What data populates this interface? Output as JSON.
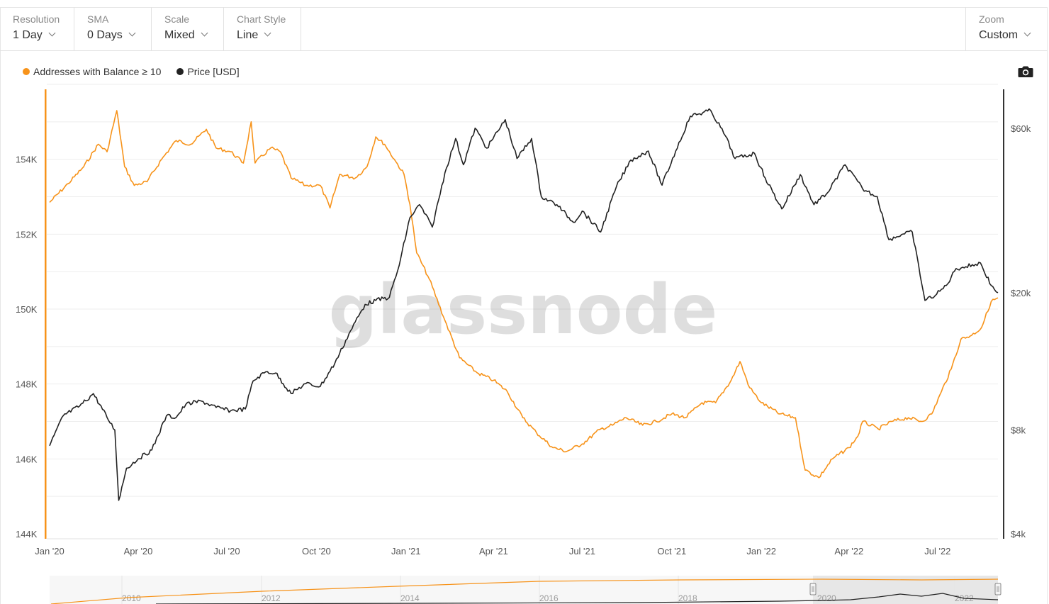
{
  "toolbar": {
    "resolution": {
      "label": "Resolution",
      "value": "1 Day"
    },
    "sma": {
      "label": "SMA",
      "value": "0 Days"
    },
    "scale": {
      "label": "Scale",
      "value": "Mixed"
    },
    "chart_style": {
      "label": "Chart Style",
      "value": "Line"
    },
    "zoom": {
      "label": "Zoom",
      "value": "Custom"
    }
  },
  "icons": {
    "camera": "camera-icon"
  },
  "colors": {
    "addresses": "#f7931a",
    "price": "#222222",
    "grid": "#eeeeee"
  },
  "watermark": "glassnode",
  "navigator": {
    "ticks": [
      "2010",
      "2012",
      "2014",
      "2016",
      "2018",
      "2020",
      "2022"
    ]
  },
  "chart_data": {
    "type": "line",
    "title": "",
    "legend": "top-left",
    "grid": true,
    "x_range": [
      "2020-01-01",
      "2022-09-01"
    ],
    "x_ticks": [
      "Jan '20",
      "Apr '20",
      "Jul '20",
      "Oct '20",
      "Jan '21",
      "Apr '21",
      "Jul '21",
      "Oct '21",
      "Jan '22",
      "Apr '22",
      "Jul '22"
    ],
    "y_left": {
      "scale": "linear",
      "range": [
        144000,
        156000
      ],
      "ticks": [
        "144K",
        "146K",
        "148K",
        "150K",
        "152K",
        "154K"
      ]
    },
    "y_right": {
      "scale": "log",
      "range": [
        4000,
        80000
      ],
      "ticks": [
        "$4k",
        "$8k",
        "$20k",
        "$60k"
      ]
    },
    "series": [
      {
        "name": "Addresses with Balance ≥ 10",
        "axis": "left",
        "points": [
          [
            "2020-01-01",
            152850
          ],
          [
            "2020-01-20",
            153350
          ],
          [
            "2020-02-05",
            153800
          ],
          [
            "2020-02-20",
            154400
          ],
          [
            "2020-02-29",
            154200
          ],
          [
            "2020-03-10",
            155300
          ],
          [
            "2020-03-18",
            153800
          ],
          [
            "2020-03-28",
            153300
          ],
          [
            "2020-04-10",
            153400
          ],
          [
            "2020-04-25",
            154000
          ],
          [
            "2020-05-10",
            154500
          ],
          [
            "2020-05-25",
            154400
          ],
          [
            "2020-06-10",
            154800
          ],
          [
            "2020-06-20",
            154300
          ],
          [
            "2020-07-05",
            154200
          ],
          [
            "2020-07-18",
            153900
          ],
          [
            "2020-07-26",
            155000
          ],
          [
            "2020-07-30",
            153900
          ],
          [
            "2020-08-15",
            154300
          ],
          [
            "2020-08-25",
            154200
          ],
          [
            "2020-09-05",
            153500
          ],
          [
            "2020-09-20",
            153300
          ],
          [
            "2020-10-05",
            153300
          ],
          [
            "2020-10-15",
            152700
          ],
          [
            "2020-10-25",
            153600
          ],
          [
            "2020-11-10",
            153500
          ],
          [
            "2020-11-22",
            153800
          ],
          [
            "2020-12-01",
            154600
          ],
          [
            "2020-12-10",
            154400
          ],
          [
            "2020-12-20",
            154000
          ],
          [
            "2020-12-30",
            153600
          ],
          [
            "2021-01-05",
            152800
          ],
          [
            "2021-01-12",
            151500
          ],
          [
            "2021-01-25",
            150800
          ],
          [
            "2021-02-10",
            149700
          ],
          [
            "2021-02-25",
            148700
          ],
          [
            "2021-03-15",
            148300
          ],
          [
            "2021-04-01",
            148100
          ],
          [
            "2021-04-15",
            147800
          ],
          [
            "2021-05-01",
            147100
          ],
          [
            "2021-05-15",
            146700
          ],
          [
            "2021-06-01",
            146300
          ],
          [
            "2021-06-15",
            146200
          ],
          [
            "2021-07-01",
            146400
          ],
          [
            "2021-07-20",
            146800
          ],
          [
            "2021-08-01",
            146900
          ],
          [
            "2021-08-15",
            147100
          ],
          [
            "2021-09-01",
            146900
          ],
          [
            "2021-09-15",
            147000
          ],
          [
            "2021-10-01",
            147200
          ],
          [
            "2021-10-15",
            147100
          ],
          [
            "2021-11-01",
            147500
          ],
          [
            "2021-11-15",
            147500
          ],
          [
            "2021-12-01",
            148100
          ],
          [
            "2021-12-10",
            148600
          ],
          [
            "2021-12-20",
            147900
          ],
          [
            "2022-01-01",
            147500
          ],
          [
            "2022-01-20",
            147200
          ],
          [
            "2022-02-05",
            147100
          ],
          [
            "2022-02-15",
            145700
          ],
          [
            "2022-03-01",
            145500
          ],
          [
            "2022-03-15",
            146000
          ],
          [
            "2022-04-01",
            146300
          ],
          [
            "2022-04-10",
            146600
          ],
          [
            "2022-04-15",
            147000
          ],
          [
            "2022-05-01",
            146800
          ],
          [
            "2022-05-15",
            147000
          ],
          [
            "2022-06-01",
            147100
          ],
          [
            "2022-06-15",
            147000
          ],
          [
            "2022-06-25",
            147200
          ],
          [
            "2022-07-05",
            147800
          ],
          [
            "2022-07-15",
            148400
          ],
          [
            "2022-07-25",
            149200
          ],
          [
            "2022-08-05",
            149300
          ],
          [
            "2022-08-15",
            149500
          ],
          [
            "2022-08-25",
            150200
          ],
          [
            "2022-09-01",
            150300
          ]
        ]
      },
      {
        "name": "Price [USD]",
        "axis": "right",
        "points": [
          [
            "2020-01-01",
            7200
          ],
          [
            "2020-01-15",
            8800
          ],
          [
            "2020-02-01",
            9400
          ],
          [
            "2020-02-15",
            10200
          ],
          [
            "2020-02-29",
            8700
          ],
          [
            "2020-03-08",
            8000
          ],
          [
            "2020-03-12",
            5000
          ],
          [
            "2020-03-20",
            6200
          ],
          [
            "2020-04-01",
            6600
          ],
          [
            "2020-04-15",
            7000
          ],
          [
            "2020-04-30",
            8800
          ],
          [
            "2020-05-10",
            8700
          ],
          [
            "2020-05-20",
            9500
          ],
          [
            "2020-06-05",
            9700
          ],
          [
            "2020-06-20",
            9300
          ],
          [
            "2020-07-05",
            9100
          ],
          [
            "2020-07-20",
            9200
          ],
          [
            "2020-07-28",
            11100
          ],
          [
            "2020-08-10",
            11800
          ],
          [
            "2020-08-20",
            11700
          ],
          [
            "2020-09-05",
            10200
          ],
          [
            "2020-09-20",
            10900
          ],
          [
            "2020-10-05",
            10700
          ],
          [
            "2020-10-20",
            12500
          ],
          [
            "2020-11-05",
            15500
          ],
          [
            "2020-11-20",
            18500
          ],
          [
            "2020-12-01",
            19000
          ],
          [
            "2020-12-15",
            19400
          ],
          [
            "2020-12-25",
            24000
          ],
          [
            "2021-01-05",
            33000
          ],
          [
            "2021-01-15",
            36000
          ],
          [
            "2021-01-28",
            31000
          ],
          [
            "2021-02-10",
            44500
          ],
          [
            "2021-02-21",
            56000
          ],
          [
            "2021-03-01",
            47000
          ],
          [
            "2021-03-13",
            60000
          ],
          [
            "2021-03-25",
            52500
          ],
          [
            "2021-04-13",
            63500
          ],
          [
            "2021-04-25",
            49000
          ],
          [
            "2021-05-10",
            56000
          ],
          [
            "2021-05-20",
            38000
          ],
          [
            "2021-06-05",
            36000
          ],
          [
            "2021-06-22",
            32000
          ],
          [
            "2021-07-01",
            34500
          ],
          [
            "2021-07-20",
            30000
          ],
          [
            "2021-08-05",
            40500
          ],
          [
            "2021-08-20",
            48500
          ],
          [
            "2021-09-07",
            51500
          ],
          [
            "2021-09-21",
            41000
          ],
          [
            "2021-10-05",
            51500
          ],
          [
            "2021-10-20",
            65000
          ],
          [
            "2021-11-10",
            67500
          ],
          [
            "2021-11-25",
            57000
          ],
          [
            "2021-12-05",
            49000
          ],
          [
            "2021-12-25",
            50700
          ],
          [
            "2022-01-05",
            43000
          ],
          [
            "2022-01-22",
            35000
          ],
          [
            "2022-02-10",
            44000
          ],
          [
            "2022-02-24",
            36000
          ],
          [
            "2022-03-10",
            39000
          ],
          [
            "2022-03-28",
            47000
          ],
          [
            "2022-04-15",
            40000
          ],
          [
            "2022-04-30",
            38000
          ],
          [
            "2022-05-12",
            28500
          ],
          [
            "2022-05-25",
            29500
          ],
          [
            "2022-06-05",
            30000
          ],
          [
            "2022-06-18",
            19000
          ],
          [
            "2022-06-30",
            19800
          ],
          [
            "2022-07-10",
            21000
          ],
          [
            "2022-07-20",
            23500
          ],
          [
            "2022-07-30",
            23800
          ],
          [
            "2022-08-14",
            24400
          ],
          [
            "2022-08-25",
            21000
          ],
          [
            "2022-09-01",
            20000
          ]
        ]
      }
    ]
  }
}
